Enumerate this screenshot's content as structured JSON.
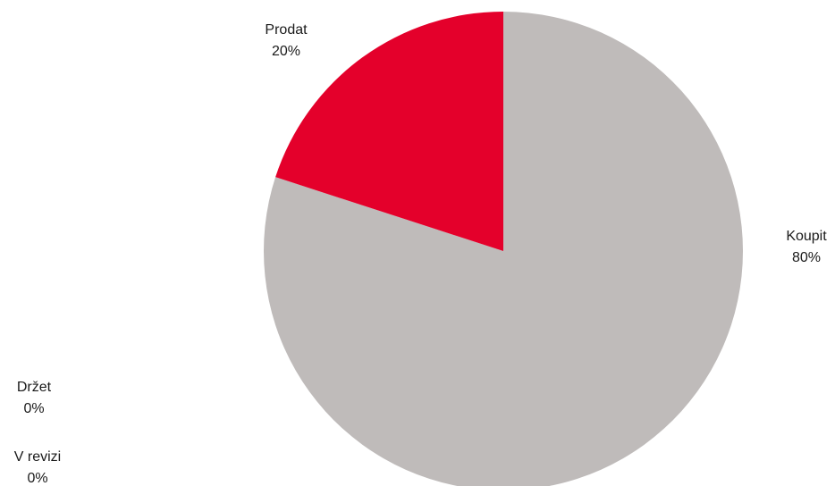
{
  "chart_data": {
    "type": "pie",
    "title": "",
    "slices": [
      {
        "label": "Koupit",
        "value": 80,
        "value_text": "80%",
        "color": "#bfbbba"
      },
      {
        "label": "Prodat",
        "value": 20,
        "value_text": "20%",
        "color": "#e4002b"
      },
      {
        "label": "Držet",
        "value": 0,
        "value_text": "0%",
        "color": "#7f7f7f"
      },
      {
        "label": "V revizi",
        "value": 0,
        "value_text": "0%",
        "color": "#595959"
      }
    ]
  }
}
